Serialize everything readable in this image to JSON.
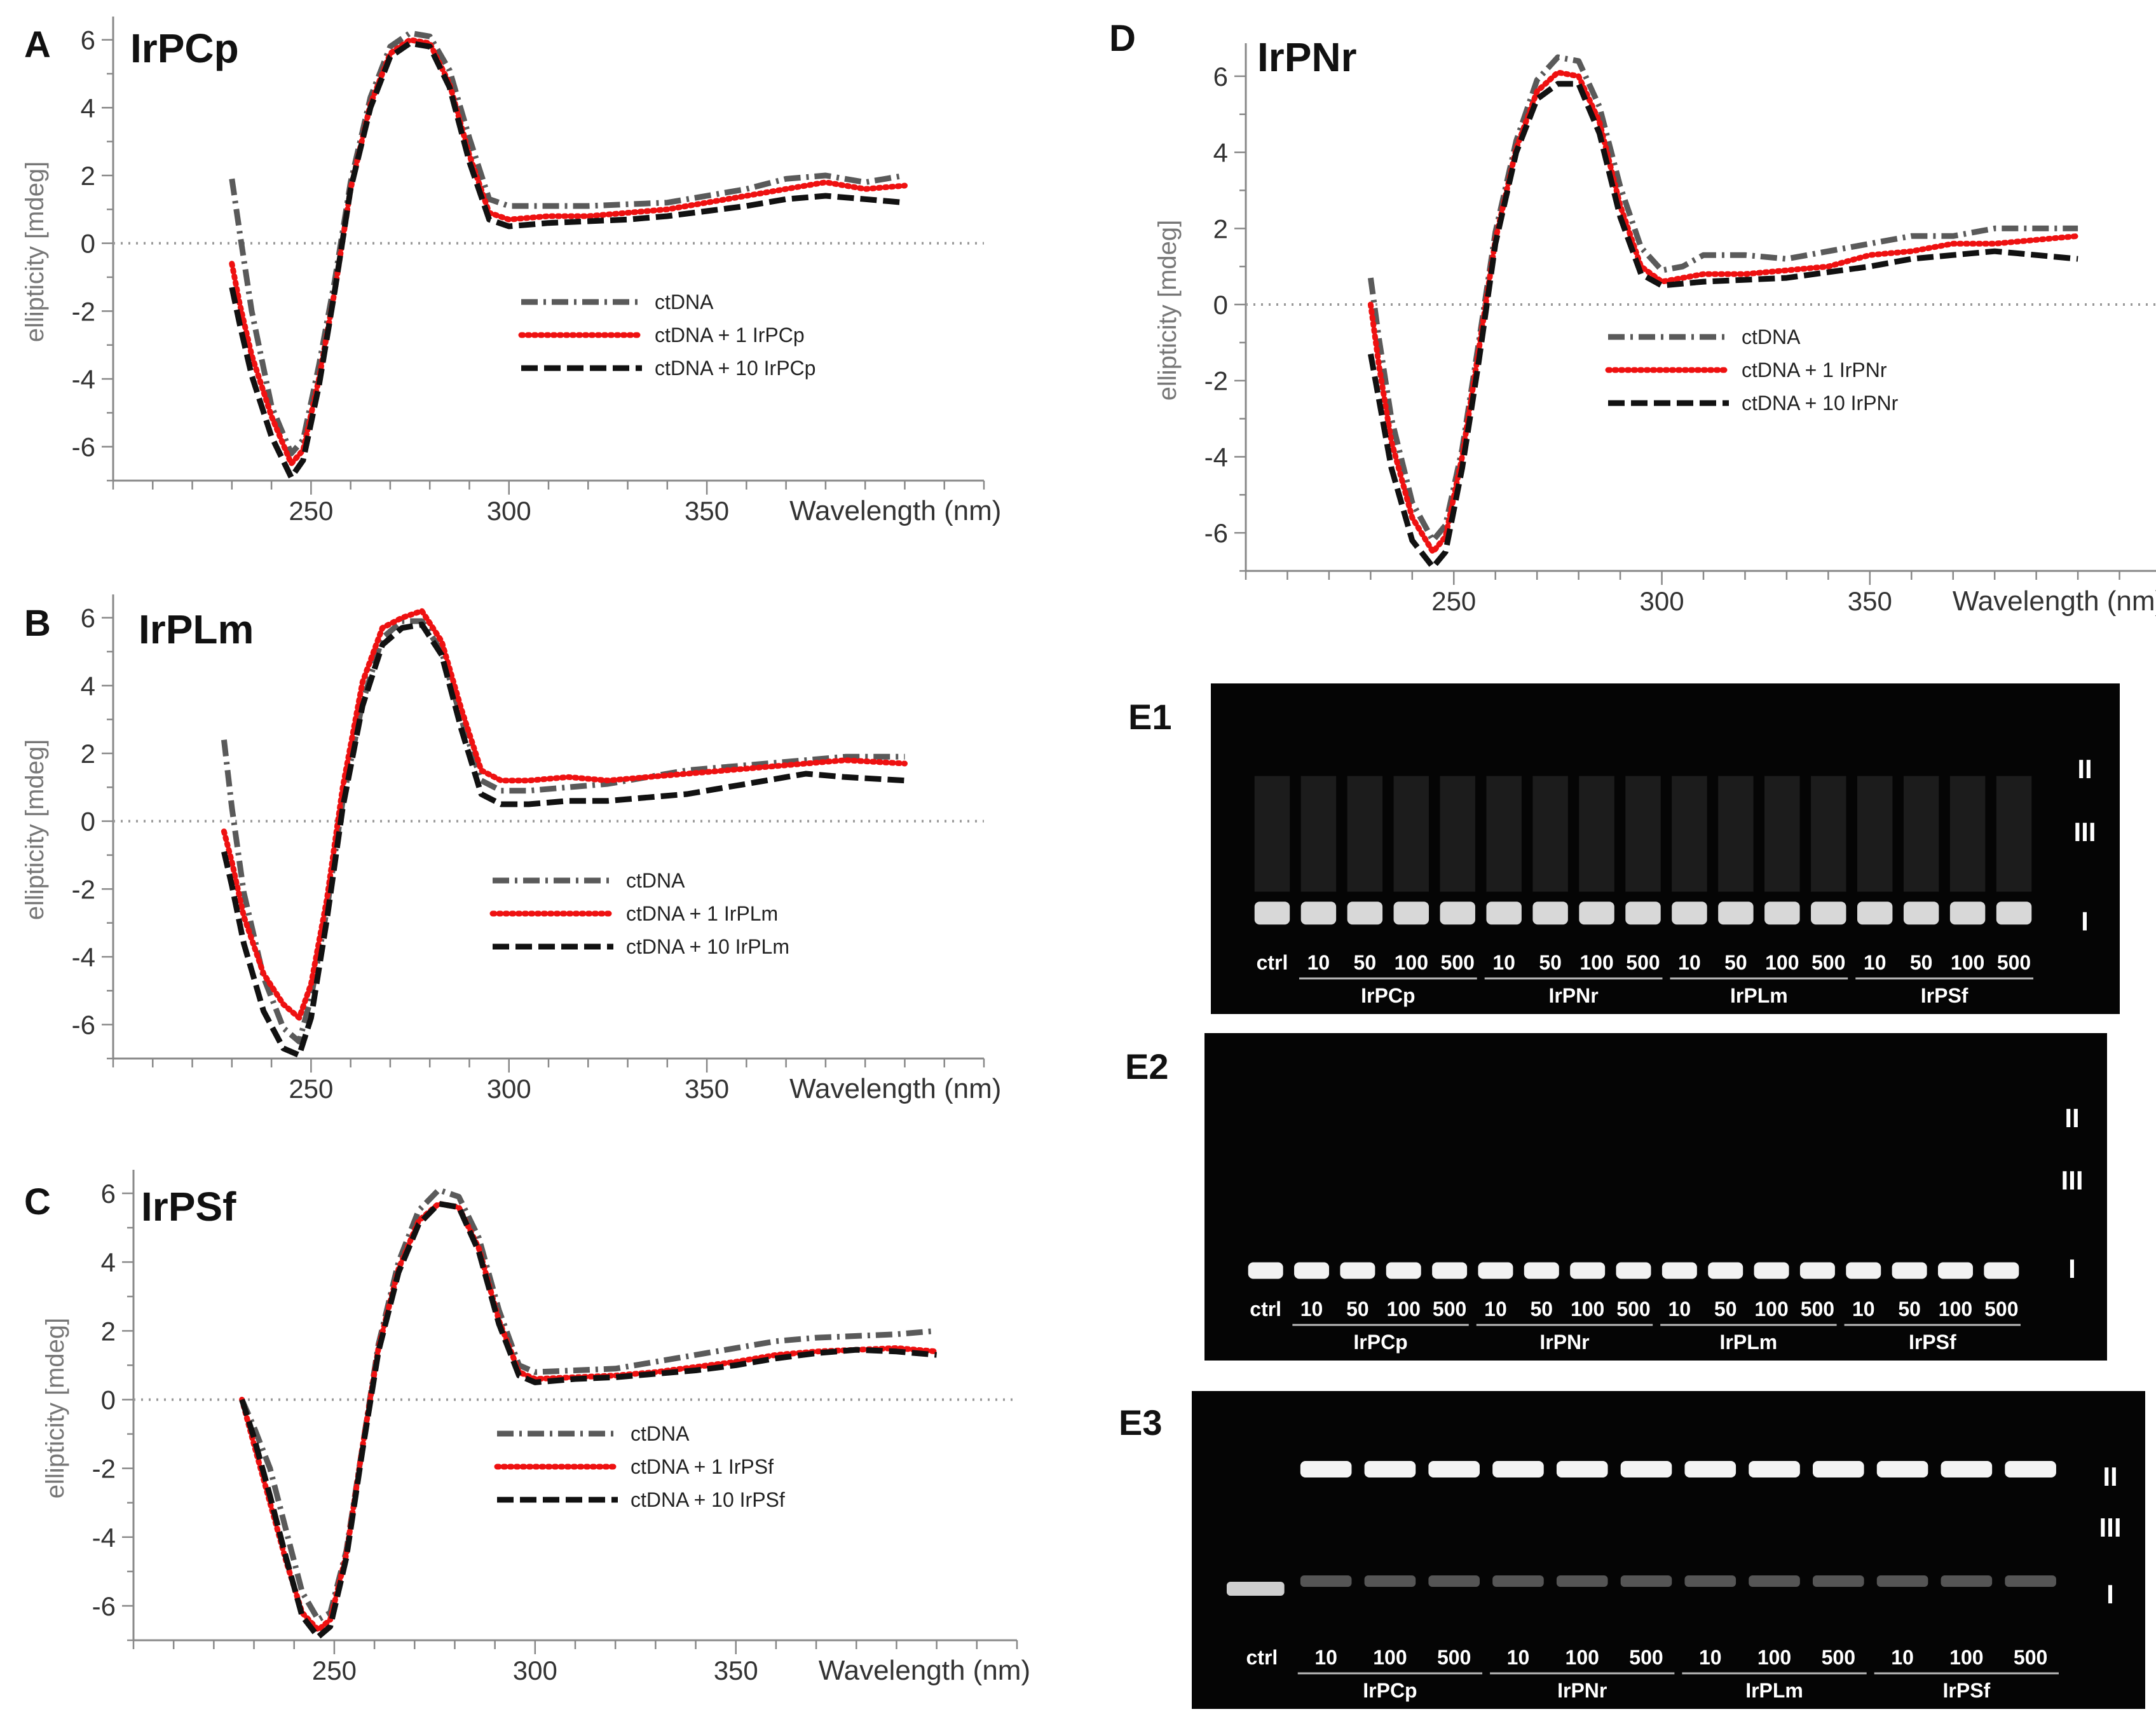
{
  "chart_data": [
    {
      "type": "line",
      "panel_letter": "A",
      "compound": "IrPCp",
      "xlabel": "Wavelength (nm)",
      "ylabel": "ellipticity [mdeg]",
      "xlim": [
        200,
        420
      ],
      "ylim": [
        -7,
        6.5
      ],
      "x_ticks": [
        250,
        300,
        350
      ],
      "y_ticks": [
        -6,
        -4,
        -2,
        0,
        2,
        4,
        6
      ],
      "zero_line": true,
      "legend": [
        "ctDNA",
        "ctDNA + 1   IrPCp",
        "ctDNA + 10 IrPCp"
      ],
      "series": [
        {
          "name": "ctDNA",
          "style": "dashdot",
          "color": "#5a5a5a",
          "x": [
            230,
            232,
            235,
            240,
            245,
            248,
            252,
            256,
            260,
            265,
            270,
            275,
            280,
            285,
            290,
            295,
            300,
            310,
            320,
            330,
            340,
            350,
            360,
            370,
            380,
            390,
            400
          ],
          "y": [
            1.9,
            0.3,
            -2.0,
            -4.8,
            -6.2,
            -5.8,
            -3.6,
            -1.1,
            1.8,
            4.3,
            5.8,
            6.2,
            6.1,
            5.1,
            3.1,
            1.3,
            1.1,
            1.1,
            1.1,
            1.15,
            1.2,
            1.4,
            1.6,
            1.9,
            2.0,
            1.8,
            2.0
          ]
        },
        {
          "name": "ctDNA + 1   IrPCp",
          "style": "dotted",
          "color": "#ee1111",
          "x": [
            230,
            232,
            235,
            240,
            245,
            248,
            252,
            256,
            260,
            265,
            270,
            275,
            280,
            285,
            290,
            295,
            300,
            310,
            320,
            330,
            340,
            350,
            360,
            370,
            380,
            390,
            400
          ],
          "y": [
            -0.6,
            -1.8,
            -3.3,
            -5.1,
            -6.5,
            -6.1,
            -4.0,
            -1.4,
            1.6,
            4.1,
            5.6,
            6.0,
            5.9,
            4.7,
            2.6,
            0.9,
            0.7,
            0.8,
            0.8,
            0.9,
            1.0,
            1.2,
            1.4,
            1.6,
            1.8,
            1.6,
            1.7
          ]
        },
        {
          "name": "ctDNA + 10 IrPCp",
          "style": "dashed",
          "color": "#111111",
          "x": [
            230,
            232,
            235,
            240,
            245,
            248,
            252,
            256,
            260,
            265,
            270,
            275,
            280,
            285,
            290,
            295,
            300,
            310,
            320,
            330,
            340,
            350,
            360,
            370,
            380,
            390,
            400
          ],
          "y": [
            -1.3,
            -2.4,
            -3.9,
            -5.7,
            -6.9,
            -6.4,
            -4.2,
            -1.4,
            1.6,
            4.0,
            5.5,
            5.9,
            5.8,
            4.6,
            2.4,
            0.7,
            0.5,
            0.6,
            0.65,
            0.7,
            0.8,
            0.95,
            1.1,
            1.3,
            1.4,
            1.3,
            1.2
          ]
        }
      ]
    },
    {
      "type": "line",
      "panel_letter": "B",
      "compound": "IrPLm",
      "xlabel": "Wavelength (nm)",
      "ylabel": "ellipticity [mdeg]",
      "xlim": [
        200,
        420
      ],
      "ylim": [
        -7,
        6.5
      ],
      "x_ticks": [
        250,
        300,
        350
      ],
      "y_ticks": [
        -6,
        -4,
        -2,
        0,
        2,
        4,
        6
      ],
      "zero_line": true,
      "legend": [
        "ctDNA",
        "ctDNA + 1   IrPLm",
        "ctDNA + 10 IrPLm"
      ],
      "series": [
        {
          "name": "ctDNA",
          "style": "dashdot",
          "color": "#5a5a5a",
          "x": [
            228,
            230,
            233,
            238,
            243,
            247,
            250,
            254,
            258,
            263,
            268,
            273,
            278,
            283,
            288,
            293,
            298,
            305,
            315,
            325,
            335,
            345,
            355,
            365,
            375,
            385,
            400
          ],
          "y": [
            2.4,
            0.4,
            -2.1,
            -4.6,
            -6.1,
            -6.5,
            -5.2,
            -2.6,
            0.6,
            3.5,
            5.4,
            5.9,
            5.9,
            5.0,
            3.0,
            1.2,
            0.9,
            0.9,
            1.0,
            1.1,
            1.3,
            1.5,
            1.6,
            1.7,
            1.8,
            1.9,
            1.9
          ]
        },
        {
          "name": "ctDNA + 1   IrPLm",
          "style": "dotted",
          "color": "#ee1111",
          "x": [
            228,
            230,
            233,
            238,
            243,
            247,
            250,
            254,
            258,
            263,
            268,
            273,
            278,
            283,
            288,
            293,
            298,
            305,
            315,
            325,
            335,
            345,
            355,
            365,
            375,
            385,
            400
          ],
          "y": [
            -0.3,
            -1.2,
            -2.8,
            -4.5,
            -5.4,
            -5.8,
            -4.8,
            -2.3,
            1.0,
            4.1,
            5.7,
            6.0,
            6.2,
            5.3,
            3.3,
            1.5,
            1.2,
            1.2,
            1.3,
            1.2,
            1.3,
            1.4,
            1.5,
            1.6,
            1.7,
            1.8,
            1.7
          ]
        },
        {
          "name": "ctDNA + 10 IrPLm",
          "style": "dashed",
          "color": "#111111",
          "x": [
            228,
            230,
            233,
            238,
            243,
            247,
            250,
            254,
            258,
            263,
            268,
            273,
            278,
            283,
            288,
            293,
            298,
            305,
            315,
            325,
            335,
            345,
            355,
            365,
            375,
            385,
            400
          ],
          "y": [
            -0.9,
            -1.9,
            -3.6,
            -5.6,
            -6.7,
            -6.9,
            -5.8,
            -2.9,
            0.4,
            3.4,
            5.2,
            5.7,
            5.8,
            4.9,
            2.7,
            0.8,
            0.5,
            0.5,
            0.6,
            0.6,
            0.7,
            0.8,
            1.0,
            1.2,
            1.4,
            1.3,
            1.2
          ]
        }
      ]
    },
    {
      "type": "line",
      "panel_letter": "C",
      "compound": "IrPSf",
      "xlabel": "Wavelength (nm)",
      "ylabel": "ellipticity [mdeg]",
      "xlim": [
        200,
        420
      ],
      "ylim": [
        -7,
        6.5
      ],
      "x_ticks": [
        250,
        300,
        350
      ],
      "y_ticks": [
        -6,
        -4,
        -2,
        0,
        2,
        4,
        6
      ],
      "zero_line": true,
      "legend": [
        "ctDNA",
        "ctDNA + 1   IrPSf",
        "ctDNA + 10 IrPSf"
      ],
      "series": [
        {
          "name": "ctDNA",
          "style": "dashdot",
          "color": "#5a5a5a",
          "x": [
            227,
            230,
            234,
            238,
            242,
            246,
            249,
            253,
            257,
            261,
            266,
            271,
            276,
            281,
            286,
            291,
            296,
            300,
            310,
            320,
            330,
            340,
            350,
            360,
            370,
            380,
            390,
            400
          ],
          "y": [
            0.0,
            -0.8,
            -2.0,
            -3.8,
            -5.6,
            -6.4,
            -6.2,
            -4.4,
            -1.4,
            1.6,
            4.0,
            5.5,
            6.1,
            5.9,
            4.7,
            2.6,
            1.0,
            0.8,
            0.85,
            0.9,
            1.1,
            1.3,
            1.5,
            1.7,
            1.8,
            1.85,
            1.9,
            2.0
          ]
        },
        {
          "name": "ctDNA + 1   IrPSf",
          "style": "dotted",
          "color": "#ee1111",
          "x": [
            227,
            230,
            234,
            238,
            242,
            246,
            249,
            253,
            257,
            261,
            266,
            271,
            276,
            281,
            286,
            291,
            296,
            300,
            310,
            320,
            330,
            340,
            350,
            360,
            370,
            380,
            390,
            400
          ],
          "y": [
            0.0,
            -1.3,
            -3.0,
            -4.7,
            -6.2,
            -6.7,
            -6.4,
            -4.5,
            -1.4,
            1.5,
            3.8,
            5.2,
            5.7,
            5.6,
            4.4,
            2.3,
            0.8,
            0.6,
            0.65,
            0.7,
            0.8,
            0.95,
            1.1,
            1.3,
            1.4,
            1.45,
            1.5,
            1.4
          ]
        },
        {
          "name": "ctDNA + 10 IrPSf",
          "style": "dashed",
          "color": "#111111",
          "x": [
            227,
            230,
            234,
            238,
            242,
            246,
            249,
            253,
            257,
            261,
            266,
            271,
            276,
            281,
            286,
            291,
            296,
            300,
            310,
            320,
            330,
            340,
            350,
            360,
            370,
            380,
            390,
            400
          ],
          "y": [
            0.0,
            -1.1,
            -2.8,
            -4.6,
            -6.3,
            -6.9,
            -6.6,
            -4.6,
            -1.5,
            1.4,
            3.7,
            5.1,
            5.7,
            5.6,
            4.3,
            2.2,
            0.7,
            0.5,
            0.6,
            0.65,
            0.75,
            0.85,
            1.0,
            1.2,
            1.35,
            1.45,
            1.4,
            1.3
          ]
        }
      ]
    },
    {
      "type": "line",
      "panel_letter": "D",
      "compound": "IrPNr",
      "xlabel": "Wavelength (nm)",
      "ylabel": "ellipticity [mdeg]",
      "xlim": [
        200,
        420
      ],
      "ylim": [
        -7,
        6.7
      ],
      "x_ticks": [
        250,
        300,
        350
      ],
      "y_ticks": [
        -6,
        -4,
        -2,
        0,
        2,
        4,
        6
      ],
      "zero_line": true,
      "legend": [
        "ctDNA",
        "ctDNA + 1   IrPNr",
        "ctDNA + 10 IrPNr"
      ],
      "series": [
        {
          "name": "ctDNA",
          "style": "dashdot",
          "color": "#5a5a5a",
          "x": [
            230,
            232,
            235,
            240,
            245,
            248,
            252,
            256,
            260,
            265,
            270,
            275,
            280,
            285,
            290,
            295,
            300,
            305,
            310,
            320,
            330,
            340,
            350,
            360,
            370,
            380,
            390,
            400
          ],
          "y": [
            0.7,
            -0.9,
            -3.0,
            -5.2,
            -6.2,
            -5.8,
            -3.8,
            -1.0,
            1.9,
            4.3,
            5.9,
            6.5,
            6.4,
            5.2,
            3.1,
            1.5,
            0.9,
            1.0,
            1.3,
            1.3,
            1.2,
            1.4,
            1.6,
            1.8,
            1.8,
            2.0,
            2.0,
            2.0
          ]
        },
        {
          "name": "ctDNA + 1   IrPNr",
          "style": "dotted",
          "color": "#ee1111",
          "x": [
            230,
            232,
            235,
            240,
            245,
            248,
            252,
            256,
            260,
            265,
            270,
            275,
            280,
            285,
            290,
            295,
            300,
            305,
            310,
            320,
            330,
            340,
            350,
            360,
            370,
            380,
            390,
            400
          ],
          "y": [
            0.0,
            -1.6,
            -3.6,
            -5.6,
            -6.5,
            -6.1,
            -4.0,
            -1.2,
            1.7,
            4.1,
            5.6,
            6.1,
            6.0,
            4.8,
            2.6,
            1.0,
            0.6,
            0.7,
            0.8,
            0.8,
            0.9,
            1.0,
            1.3,
            1.4,
            1.6,
            1.6,
            1.7,
            1.8
          ]
        },
        {
          "name": "ctDNA + 10 IrPNr",
          "style": "dashed",
          "color": "#111111",
          "x": [
            230,
            232,
            235,
            240,
            245,
            248,
            252,
            256,
            260,
            265,
            270,
            275,
            280,
            285,
            290,
            295,
            300,
            305,
            310,
            320,
            330,
            340,
            350,
            360,
            370,
            380,
            390,
            400
          ],
          "y": [
            -1.3,
            -2.5,
            -4.3,
            -6.2,
            -6.9,
            -6.5,
            -4.3,
            -1.5,
            1.6,
            4.0,
            5.4,
            5.8,
            5.8,
            4.5,
            2.3,
            0.8,
            0.5,
            0.55,
            0.6,
            0.65,
            0.7,
            0.85,
            1.0,
            1.2,
            1.3,
            1.4,
            1.3,
            1.2
          ]
        }
      ]
    }
  ],
  "gels": [
    {
      "label": "E1",
      "compounds": [
        "IrPCp",
        "IrPNr",
        "IrPLm",
        "IrPSf"
      ],
      "doses": [
        "10",
        "50",
        "100",
        "500"
      ],
      "ctrl_label": "ctrl",
      "band_labels": [
        "II",
        "III",
        "I"
      ]
    },
    {
      "label": "E2",
      "compounds": [
        "IrPCp",
        "IrPNr",
        "IrPLm",
        "IrPSf"
      ],
      "doses": [
        "10",
        "50",
        "100",
        "500"
      ],
      "ctrl_label": "ctrl",
      "band_labels": [
        "II",
        "III",
        "I"
      ]
    },
    {
      "label": "E3",
      "compounds": [
        "IrPCp",
        "IrPNr",
        "IrPLm",
        "IrPSf"
      ],
      "doses": [
        "10",
        "100",
        "500"
      ],
      "ctrl_label": "ctrl",
      "band_labels": [
        "II",
        "III",
        "I"
      ]
    }
  ]
}
